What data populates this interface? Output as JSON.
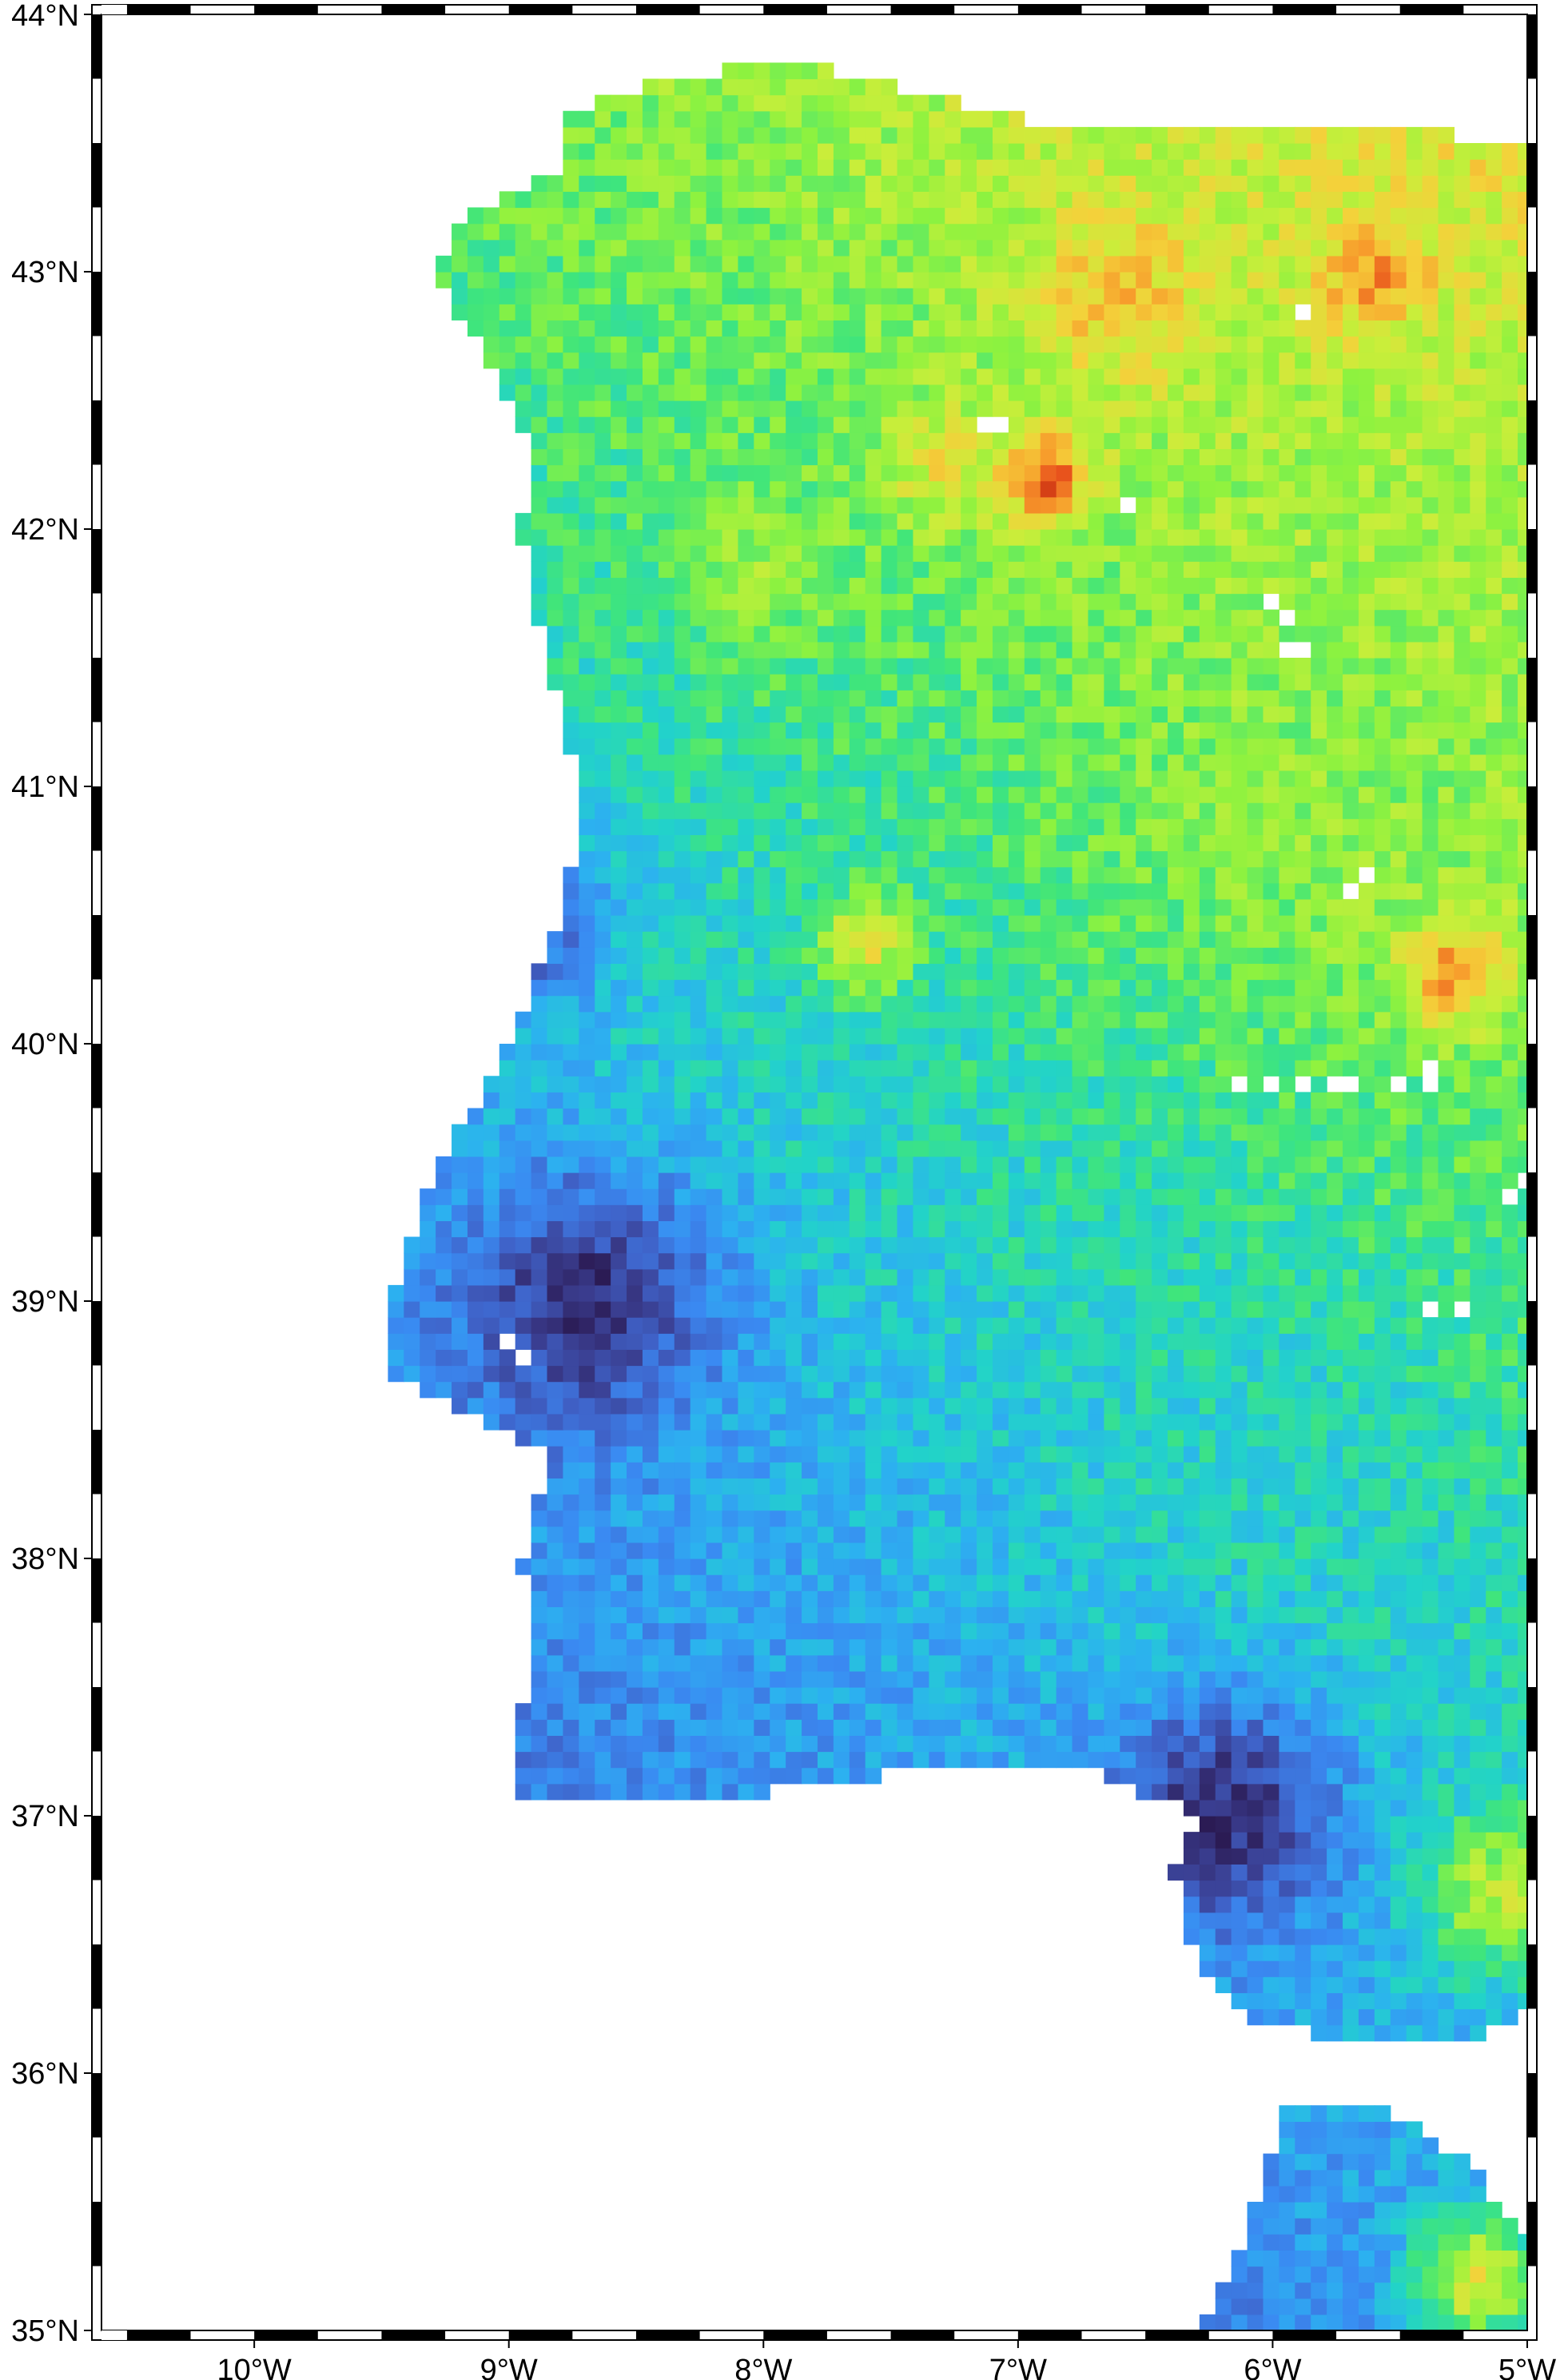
{
  "map": {
    "projection": "plate-carree",
    "extent": {
      "lon_min": -10.6,
      "lon_max": -5.0,
      "lat_min": 35.0,
      "lat_max": 44.0
    },
    "frame_style": "fancy-checkerboard",
    "background": "#ffffff",
    "frame_color": "#000000",
    "grid_cell_deg": 0.0625,
    "colormap": "turbo-like",
    "colormap_stops": [
      "#2b1b54",
      "#3a3d8f",
      "#3f63c9",
      "#3a8af2",
      "#2cb1f0",
      "#22d3c9",
      "#3fe57c",
      "#8ef23f",
      "#c9ee3a",
      "#f4d13a",
      "#f7992b",
      "#e8521c",
      "#b11e0a"
    ],
    "color_range": [
      0,
      1
    ]
  },
  "axes": {
    "x_ticks": [
      {
        "value": -10,
        "label": "10°W"
      },
      {
        "value": -9,
        "label": "9°W"
      },
      {
        "value": -8,
        "label": "8°W"
      },
      {
        "value": -7,
        "label": "7°W"
      },
      {
        "value": -6,
        "label": "6°W"
      },
      {
        "value": -5,
        "label": "5°W"
      }
    ],
    "y_ticks": [
      {
        "value": 44,
        "label": "44°N"
      },
      {
        "value": 43,
        "label": "43°N"
      },
      {
        "value": 42,
        "label": "42°N"
      },
      {
        "value": 41,
        "label": "41°N"
      },
      {
        "value": 40,
        "label": "40°N"
      },
      {
        "value": 39,
        "label": "39°N"
      },
      {
        "value": 38,
        "label": "38°N"
      },
      {
        "value": 37,
        "label": "37°N"
      },
      {
        "value": 36,
        "label": "36°N"
      }
    ],
    "y_bottom_label": {
      "value": 35,
      "label": "35°N"
    }
  },
  "chart_data": {
    "type": "heatmap",
    "x_unit": "degrees longitude",
    "y_unit": "degrees latitude",
    "xlim": [
      -10.6,
      -5.0
    ],
    "ylim": [
      35.0,
      44.0
    ],
    "land_outline": [
      [
        -8.8,
        43.6
      ],
      [
        -8.4,
        43.75
      ],
      [
        -7.9,
        43.82
      ],
      [
        -7.4,
        43.7
      ],
      [
        -6.8,
        43.55
      ],
      [
        -6.0,
        43.58
      ],
      [
        -5.5,
        43.55
      ],
      [
        -5.0,
        43.5
      ],
      [
        -5.0,
        36.25
      ],
      [
        -5.2,
        36.15
      ],
      [
        -5.5,
        36.1
      ],
      [
        -5.8,
        36.15
      ],
      [
        -6.1,
        36.2
      ],
      [
        -6.3,
        36.45
      ],
      [
        -6.4,
        36.8
      ],
      [
        -6.3,
        37.0
      ],
      [
        -6.8,
        37.2
      ],
      [
        -7.2,
        37.2
      ],
      [
        -7.6,
        37.15
      ],
      [
        -8.1,
        37.08
      ],
      [
        -8.6,
        37.05
      ],
      [
        -8.95,
        37.05
      ],
      [
        -8.95,
        37.4
      ],
      [
        -8.9,
        37.7
      ],
      [
        -8.95,
        38.0
      ],
      [
        -8.85,
        38.4
      ],
      [
        -9.05,
        38.5
      ],
      [
        -9.45,
        38.7
      ],
      [
        -9.5,
        38.85
      ],
      [
        -9.4,
        39.2
      ],
      [
        -9.3,
        39.5
      ],
      [
        -9.1,
        39.8
      ],
      [
        -8.95,
        40.1
      ],
      [
        -8.8,
        40.5
      ],
      [
        -8.7,
        40.9
      ],
      [
        -8.8,
        41.3
      ],
      [
        -8.9,
        41.7
      ],
      [
        -8.95,
        42.0
      ],
      [
        -8.9,
        42.3
      ],
      [
        -9.1,
        42.7
      ],
      [
        -9.3,
        43.0
      ],
      [
        -9.2,
        43.2
      ],
      [
        -8.8,
        43.4
      ],
      [
        -8.8,
        43.6
      ]
    ],
    "africa_outline": [
      [
        -5.95,
        35.85
      ],
      [
        -5.6,
        35.9
      ],
      [
        -5.3,
        35.7
      ],
      [
        -5.0,
        35.4
      ],
      [
        -5.0,
        35.0
      ],
      [
        -6.3,
        35.0
      ],
      [
        -6.1,
        35.4
      ],
      [
        -5.95,
        35.85
      ]
    ],
    "value_hotspots": [
      {
        "lon": -5.6,
        "lat": 42.95,
        "value": 0.92,
        "spread": 0.22
      },
      {
        "lon": -6.6,
        "lat": 42.9,
        "value": 0.78,
        "spread": 0.35
      },
      {
        "lon": -6.9,
        "lat": 42.2,
        "value": 0.95,
        "spread": 0.18
      },
      {
        "lon": -7.3,
        "lat": 42.25,
        "value": 0.7,
        "spread": 0.25
      },
      {
        "lon": -5.3,
        "lat": 40.3,
        "value": 0.95,
        "spread": 0.22
      },
      {
        "lon": -7.6,
        "lat": 40.4,
        "value": 0.72,
        "spread": 0.18
      },
      {
        "lon": -5.4,
        "lat": 42.0,
        "value": 0.62,
        "spread": 0.9
      },
      {
        "lon": -5.8,
        "lat": 41.0,
        "value": 0.58,
        "spread": 0.8
      },
      {
        "lon": -8.0,
        "lat": 41.85,
        "value": 0.6,
        "spread": 0.3
      },
      {
        "lon": -5.1,
        "lat": 36.7,
        "value": 0.65,
        "spread": 0.3
      },
      {
        "lon": -5.2,
        "lat": 35.2,
        "value": 0.7,
        "spread": 0.25
      },
      {
        "lon": -6.0,
        "lat": 38.3,
        "value": 0.42,
        "spread": 0.7
      }
    ],
    "low_value_zones": [
      {
        "lon": -8.7,
        "lat": 39.0,
        "value": 0.05,
        "spread": 0.5
      },
      {
        "lon": -6.2,
        "lat": 37.0,
        "value": 0.04,
        "spread": 0.45
      },
      {
        "lon": -9.0,
        "lat": 40.5,
        "value": 0.1,
        "spread": 0.35
      }
    ],
    "missing_cells": [
      {
        "lon": -7.19,
        "lat": 42.38
      },
      {
        "lon": -7.13,
        "lat": 42.38
      },
      {
        "lon": -6.59,
        "lat": 42.06
      },
      {
        "lon": -6.02,
        "lat": 41.66
      },
      {
        "lon": -5.96,
        "lat": 41.6
      },
      {
        "lon": -5.96,
        "lat": 41.47
      },
      {
        "lon": -5.9,
        "lat": 41.47
      },
      {
        "lon": -5.94,
        "lat": 42.84
      },
      {
        "lon": -5.65,
        "lat": 40.6
      },
      {
        "lon": -5.71,
        "lat": 40.54
      },
      {
        "lon": -6.14,
        "lat": 39.84
      },
      {
        "lon": -6.02,
        "lat": 39.84
      },
      {
        "lon": -5.94,
        "lat": 39.84
      },
      {
        "lon": -5.8,
        "lat": 39.84
      },
      {
        "lon": -5.7,
        "lat": 39.84
      },
      {
        "lon": -5.56,
        "lat": 39.84
      },
      {
        "lon": -5.44,
        "lat": 39.84
      },
      {
        "lon": -5.4,
        "lat": 39.9
      },
      {
        "lon": -5.08,
        "lat": 39.35
      },
      {
        "lon": -5.02,
        "lat": 39.41
      },
      {
        "lon": -5.44,
        "lat": 38.92
      },
      {
        "lon": -5.3,
        "lat": 38.92
      },
      {
        "lon": -9.02,
        "lat": 38.8
      },
      {
        "lon": -8.96,
        "lat": 38.73
      }
    ]
  }
}
